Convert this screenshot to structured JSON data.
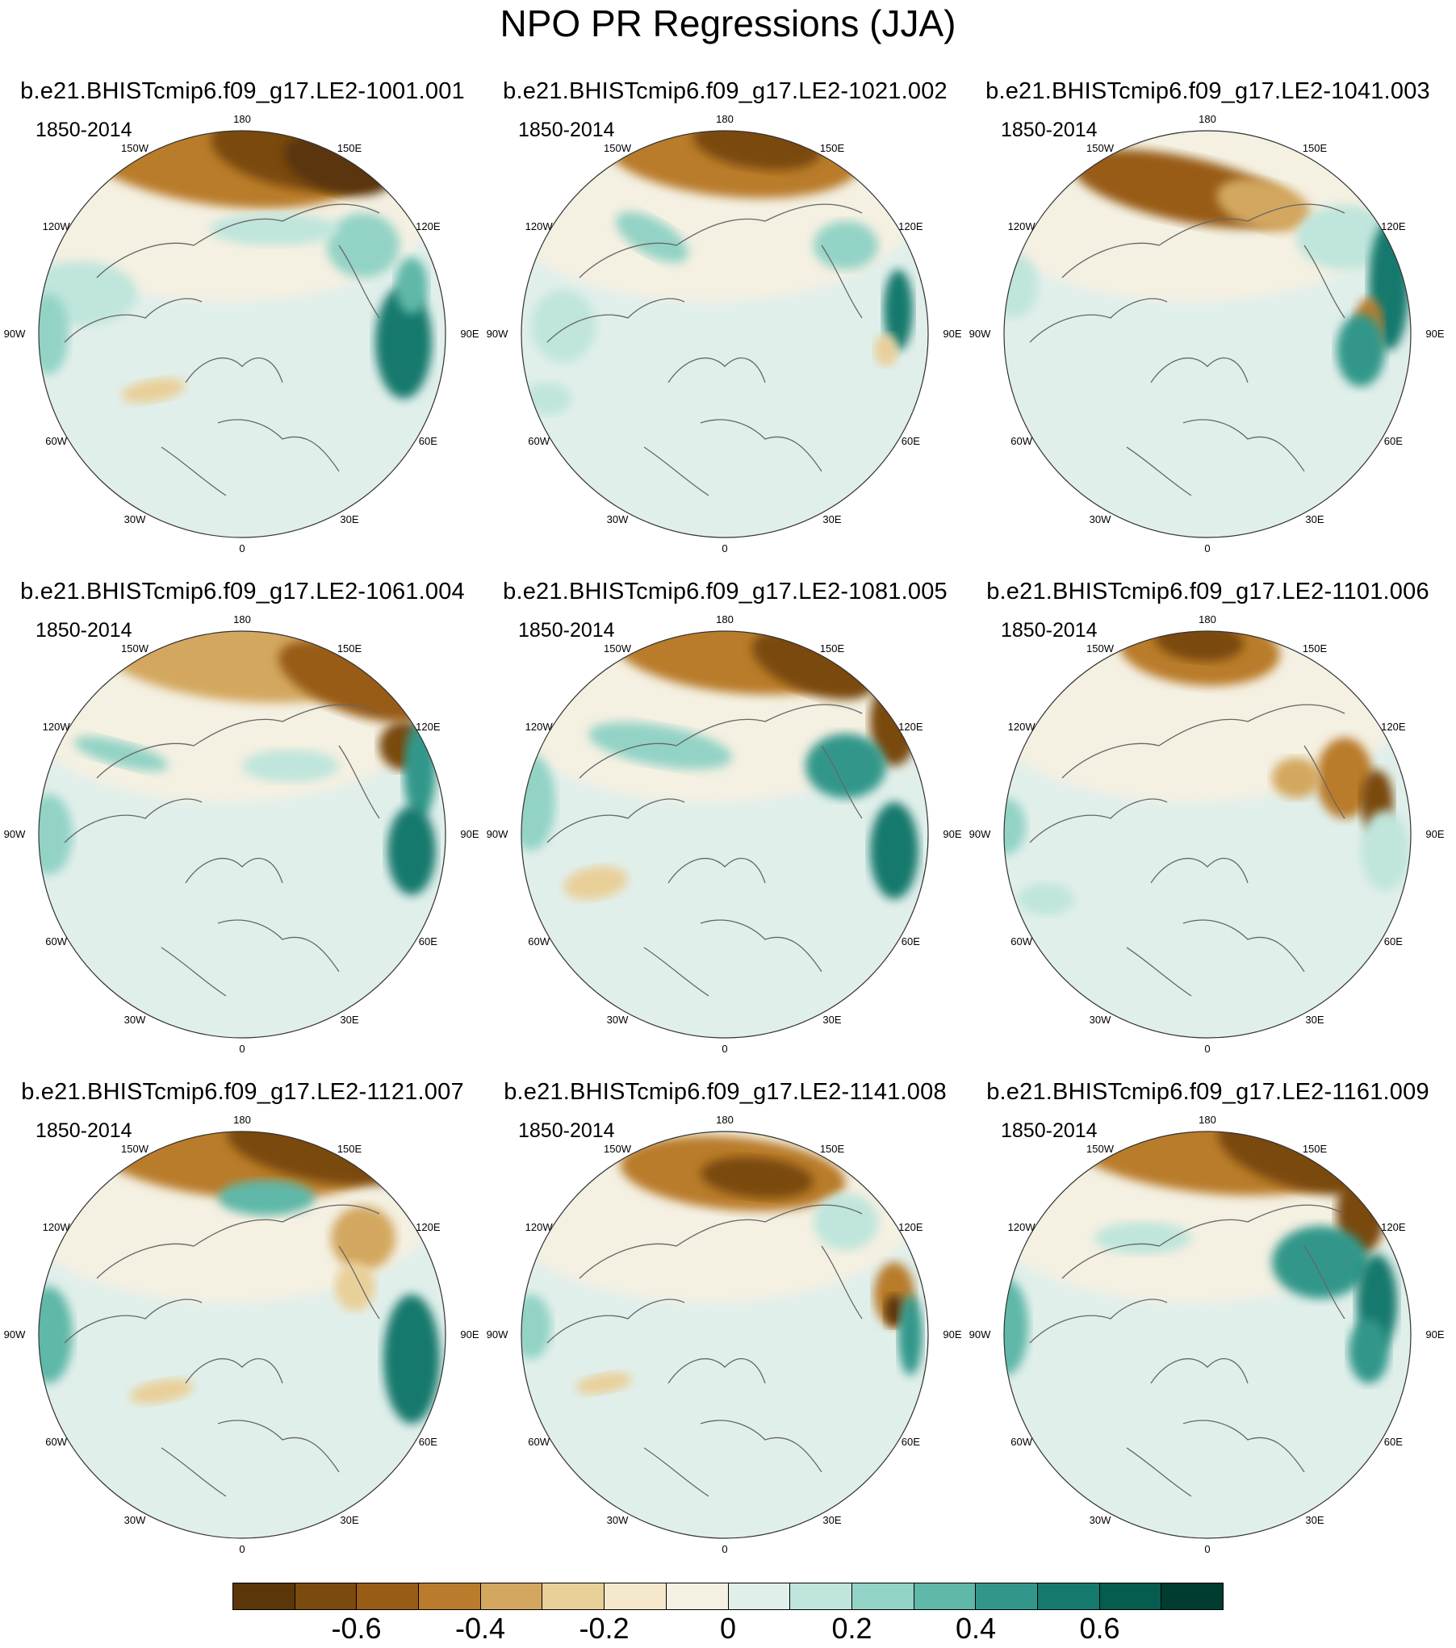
{
  "title": "NPO PR Regressions (JJA)",
  "panels": [
    {
      "name": "b.e21.BHISTcmip6.f09_g17.LE2-1001.001",
      "period": "1850-2014"
    },
    {
      "name": "b.e21.BHISTcmip6.f09_g17.LE2-1021.002",
      "period": "1850-2014"
    },
    {
      "name": "b.e21.BHISTcmip6.f09_g17.LE2-1041.003",
      "period": "1850-2014"
    },
    {
      "name": "b.e21.BHISTcmip6.f09_g17.LE2-1061.004",
      "period": "1850-2014"
    },
    {
      "name": "b.e21.BHISTcmip6.f09_g17.LE2-1081.005",
      "period": "1850-2014"
    },
    {
      "name": "b.e21.BHISTcmip6.f09_g17.LE2-1101.006",
      "period": "1850-2014"
    },
    {
      "name": "b.e21.BHISTcmip6.f09_g17.LE2-1121.007",
      "period": "1850-2014"
    },
    {
      "name": "b.e21.BHISTcmip6.f09_g17.LE2-1141.008",
      "period": "1850-2014"
    },
    {
      "name": "b.e21.BHISTcmip6.f09_g17.LE2-1161.009",
      "period": "1850-2014"
    }
  ],
  "longitude_labels": [
    "180",
    "150E",
    "120E",
    "90E",
    "60E",
    "30E",
    "0",
    "30W",
    "60W",
    "90W",
    "120W",
    "150W"
  ],
  "colorbar": {
    "colors": [
      "#5a3608",
      "#7a4a0e",
      "#985c16",
      "#b97c2c",
      "#d3a75f",
      "#e9cf98",
      "#f6e9cb",
      "#f4f0e2",
      "#e1efeb",
      "#bfe5dc",
      "#93d3c6",
      "#5fb8a8",
      "#32978a",
      "#16796d",
      "#055c4f",
      "#003c30"
    ],
    "labels": [
      {
        "text": "-0.6",
        "value": -0.6
      },
      {
        "text": "-0.4",
        "value": -0.4
      },
      {
        "text": "-0.2",
        "value": -0.2
      },
      {
        "text": "0",
        "value": 0
      },
      {
        "text": "0.2",
        "value": 0.2
      },
      {
        "text": "0.4",
        "value": 0.4
      },
      {
        "text": "0.6",
        "value": 0.6
      }
    ]
  }
}
